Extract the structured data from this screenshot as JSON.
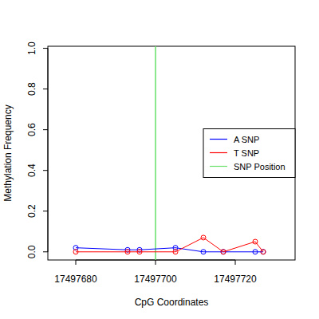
{
  "chart_data": {
    "type": "line",
    "x_label": "CpG Coordinates",
    "y_label": "Methylation Frequency",
    "x": [
      17497680,
      17497693,
      17497696,
      17497705,
      17497712,
      17497717,
      17497725,
      17497727
    ],
    "series": [
      {
        "name": "A SNP",
        "color": "#0000ff",
        "marker": "circle",
        "values": [
          0.02,
          0.01,
          0.01,
          0.02,
          0.0,
          0.0,
          0.0,
          0.0
        ]
      },
      {
        "name": "T SNP",
        "color": "#ff0000",
        "marker": "circle",
        "values": [
          0.0,
          0.0,
          0.0,
          0.0,
          0.07,
          0.0,
          0.05,
          0.0
        ]
      }
    ],
    "reference_lines": [
      {
        "name": "SNP Position",
        "x": 17497700,
        "color": "#66e066"
      }
    ],
    "xlim": [
      17497673,
      17497735
    ],
    "ylim": [
      -0.04,
      1.01
    ],
    "xticks": [
      17497680,
      17497700,
      17497720
    ],
    "yticks": [
      {
        "value": 0,
        "label": "0.0"
      },
      {
        "value": 0.2,
        "label": "0.2"
      },
      {
        "value": 0.4,
        "label": "0.4"
      },
      {
        "value": 0.6,
        "label": "0.6"
      },
      {
        "value": 0.8,
        "label": "0.8"
      },
      {
        "value": 1,
        "label": "1.0"
      }
    ],
    "legend": "right",
    "grid": false
  }
}
